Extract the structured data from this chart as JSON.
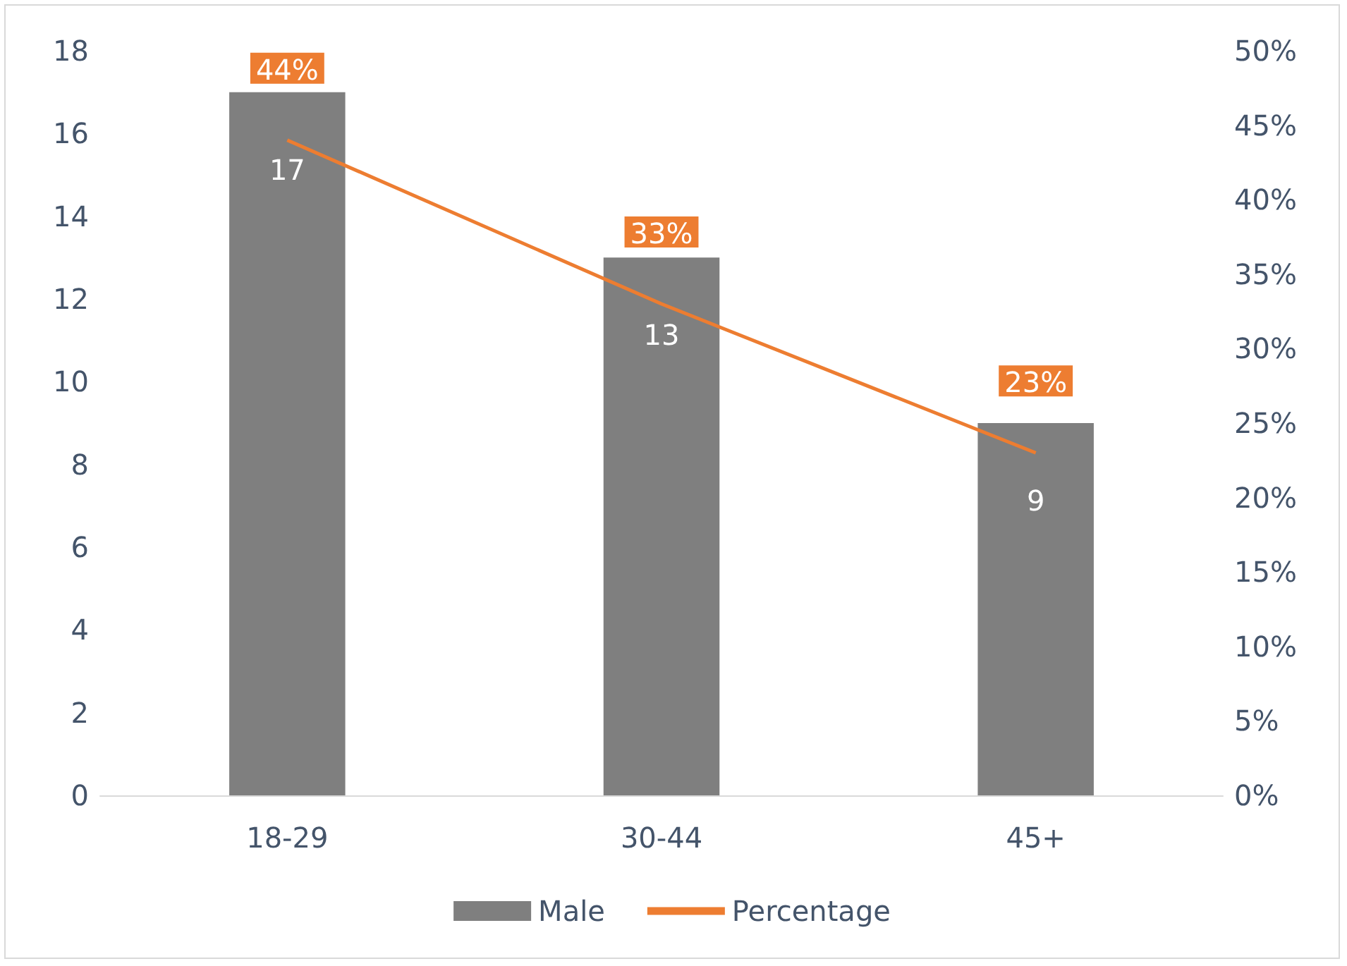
{
  "chart_data": {
    "type": "bar",
    "categories": [
      "18-29",
      "30-44",
      "45+"
    ],
    "series": [
      {
        "name": "Male",
        "color": "#7f7f7f",
        "values": [
          17,
          13,
          9
        ],
        "value_labels": [
          "17",
          "13",
          "9"
        ]
      },
      {
        "name": "Percentage",
        "type": "line",
        "axis": "y2",
        "color": "#ed7d31",
        "values": [
          44,
          33,
          23
        ],
        "value_labels": [
          "44%",
          "33%",
          "23%"
        ]
      }
    ],
    "ylim": [
      0,
      18
    ],
    "yticks": [
      0,
      2,
      4,
      6,
      8,
      10,
      12,
      14,
      16,
      18
    ],
    "y2lim": [
      0,
      50
    ],
    "y2ticks": [
      {
        "value": 0,
        "label": "0%"
      },
      {
        "value": 5,
        "label": "5%"
      },
      {
        "value": 10,
        "label": "10%"
      },
      {
        "value": 15,
        "label": "15%"
      },
      {
        "value": 20,
        "label": "20%"
      },
      {
        "value": 25,
        "label": "25%"
      },
      {
        "value": 30,
        "label": "30%"
      },
      {
        "value": 35,
        "label": "35%"
      },
      {
        "value": 40,
        "label": "40%"
      },
      {
        "value": 45,
        "label": "45%"
      },
      {
        "value": 50,
        "label": "50%"
      }
    ],
    "grid": false,
    "legend": "bottom",
    "marker": "none"
  }
}
